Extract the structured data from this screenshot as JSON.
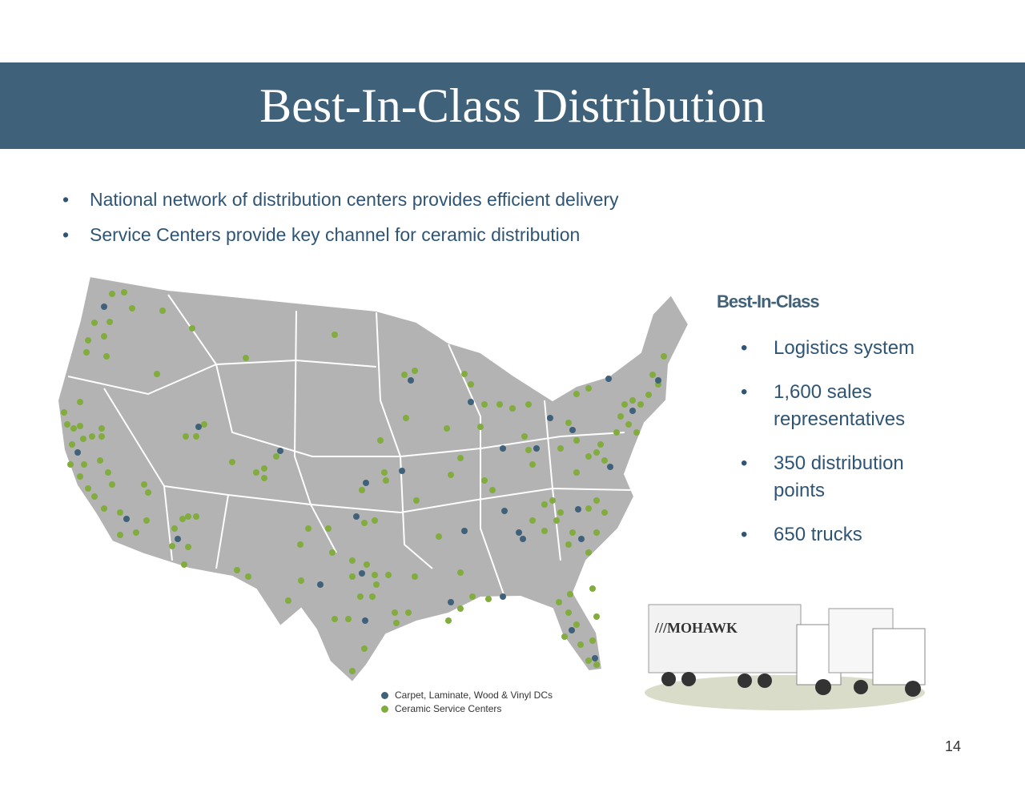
{
  "header": {
    "title": "Best-In-Class Distribution"
  },
  "bullets": [
    "National network of distribution centers provides efficient delivery",
    "Service Centers provide key channel for ceramic distribution"
  ],
  "side_panel": {
    "heading": "Best-In-Class",
    "items": [
      "Logistics system",
      "1,600 sales representatives",
      "350 distribution points",
      "650 trucks"
    ]
  },
  "legend": [
    {
      "label": "Carpet, Laminate, Wood & Vinyl DCs",
      "color": "#3f6179"
    },
    {
      "label": "Ceramic Service Centers",
      "color": "#82ac3d"
    }
  ],
  "page_number": 14
}
